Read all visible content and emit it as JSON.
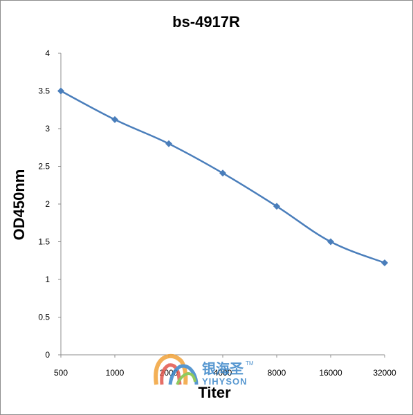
{
  "chart_data": {
    "type": "line",
    "title": "bs-4917R",
    "xlabel": "Titer",
    "ylabel": "OD450nm",
    "categories": [
      "500",
      "1000",
      "2000",
      "4000",
      "8000",
      "16000",
      "32000"
    ],
    "series": [
      {
        "values": [
          3.5,
          3.12,
          2.8,
          2.41,
          1.97,
          1.5,
          1.22
        ]
      }
    ],
    "ylim": [
      0,
      4
    ],
    "yticks": [
      "0",
      "0.5",
      "1",
      "1.5",
      "2",
      "2.5",
      "3",
      "3.5",
      "4"
    ],
    "grid": false,
    "legend": "none",
    "line_color": "#4a7ebb"
  },
  "watermark": {
    "cn": "银海圣",
    "tm": "TM",
    "en": "YIHYSON"
  }
}
